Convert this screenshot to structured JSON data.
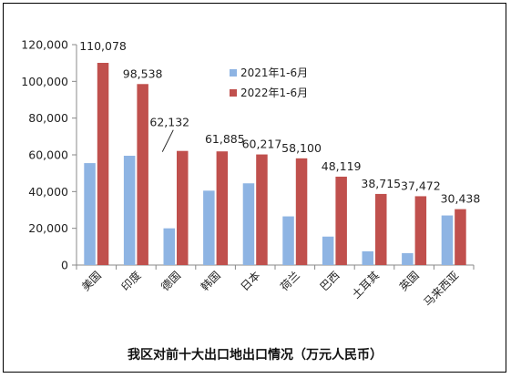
{
  "chart_data": {
    "type": "bar",
    "title": "我区对前十大出口地出口情况（万元人民币）",
    "categories": [
      "美国",
      "印度",
      "德国",
      "韩国",
      "日本",
      "荷兰",
      "巴西",
      "土耳其",
      "英国",
      "马来西亚"
    ],
    "series": [
      {
        "name": "2021年1-6月",
        "color": "#8eb4e3",
        "values": [
          55500,
          59500,
          20000,
          40500,
          44500,
          26500,
          15500,
          7500,
          6500,
          27000
        ]
      },
      {
        "name": "2022年1-6月",
        "color": "#c0504d",
        "values": [
          110078,
          98538,
          62132,
          61885,
          60217,
          58100,
          48119,
          38715,
          37472,
          30438
        ]
      }
    ],
    "data_labels": [
      "110,078",
      "98,538",
      "62,132",
      "61,885",
      "60,217",
      "58,100",
      "48,119",
      "38,715",
      "37,472",
      "30,438"
    ],
    "yticks": [
      "0",
      "20,000",
      "40,000",
      "60,000",
      "80,000",
      "100,000",
      "120,000"
    ],
    "ylim": [
      0,
      120000
    ],
    "legend_position": "top-center",
    "grid": false
  }
}
